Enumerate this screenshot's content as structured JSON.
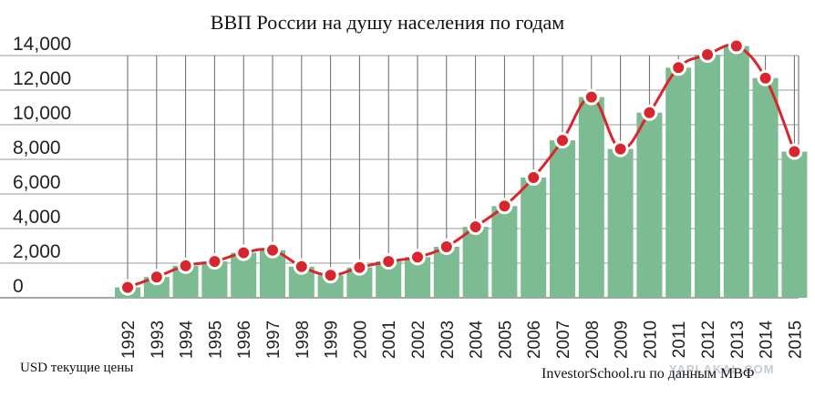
{
  "chart_data": {
    "type": "bar",
    "title": "ВВП России на душу населения по годам",
    "units_note": "USD текущие цены",
    "source_note": "InvestorSchool.ru по данным МВФ",
    "watermark": "YAPLAKAL.COM",
    "categories": [
      "1992",
      "1993",
      "1994",
      "1995",
      "1996",
      "1997",
      "1998",
      "1999",
      "2000",
      "2001",
      "2002",
      "2003",
      "2004",
      "2005",
      "2006",
      "2007",
      "2008",
      "2009",
      "2010",
      "2011",
      "2012",
      "2013",
      "2014",
      "2015"
    ],
    "values": [
      600,
      1200,
      1850,
      2100,
      2600,
      2750,
      1800,
      1300,
      1750,
      2100,
      2350,
      2950,
      4100,
      5300,
      6950,
      9100,
      11600,
      8600,
      10700,
      13300,
      14050,
      14550,
      12700,
      8450
    ],
    "yticks": [
      "0",
      "2,000",
      "4,000",
      "6,000",
      "8,000",
      "10,000",
      "12,000",
      "14,000"
    ],
    "ylim": [
      0,
      14000
    ],
    "bar_color": "#7dbb93",
    "line_color": "#d8262e",
    "marker_color": "#d8262e",
    "grid": true
  }
}
